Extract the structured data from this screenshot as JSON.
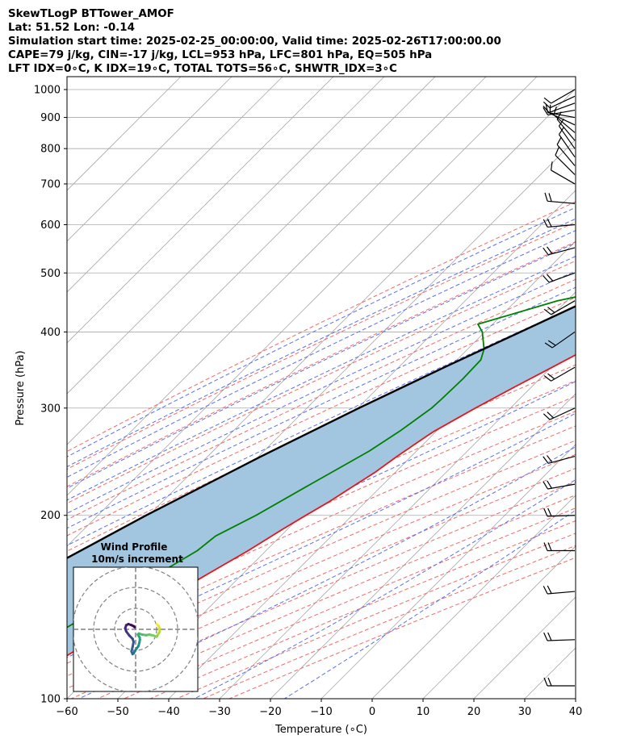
{
  "header": {
    "lines": [
      "SkewTLogP BTTower_AMOF",
      "Lat: 51.52   Lon: -0.14",
      "Simulation start time: 2025-02-25_00:00:00, Valid time: 2025-02-26T17:00:00.00",
      "CAPE=79 j/kg, CIN=-17 j/kg, LCL=953 hPa, LFC=801 hPa, EQ=505 hPa",
      "LFT IDX=0∘C, K IDX=19∘C, TOTAL TOTS=56∘C, SHWTR_IDX=3∘C"
    ]
  },
  "colors": {
    "temperature": "#e8141b",
    "dewpoint": "#008000",
    "parcel": "#000000",
    "cape_fill": "#a3c6e0",
    "dry_adiabat": "#f06a6a",
    "moist_adiabat": "#5a6ef0",
    "mixing_ratio": "#9b30c8",
    "isotherm": "#a9a9a9",
    "barb": "#000000"
  },
  "chart_data": {
    "type": "skewt_logp",
    "xlabel": "Temperature (∘C)",
    "ylabel": "Pressure (hPa)",
    "xlim": [
      -60,
      40
    ],
    "ylim": [
      1050,
      100
    ],
    "y_scale": "log",
    "x_ticks": [
      "−60",
      "−50",
      "−40",
      "−30",
      "−20",
      "−10",
      "0",
      "10",
      "20",
      "30",
      "40"
    ],
    "x_tick_values": [
      -60,
      -50,
      -40,
      -30,
      -20,
      -10,
      0,
      10,
      20,
      30,
      40
    ],
    "y_ticks": [
      "1000",
      "900",
      "800",
      "700",
      "600",
      "500",
      "400",
      "300",
      "200",
      "100"
    ],
    "y_tick_values": [
      1000,
      900,
      800,
      700,
      600,
      500,
      400,
      300,
      200,
      100
    ],
    "grid": true,
    "series": [
      {
        "key": "temperature",
        "points": [
          [
            1000,
            8.2
          ],
          [
            975,
            7.0
          ],
          [
            950,
            5.6
          ],
          [
            925,
            4.8
          ],
          [
            900,
            4.2
          ],
          [
            875,
            3.4
          ],
          [
            850,
            2.4
          ],
          [
            825,
            1.3
          ],
          [
            800,
            0.0
          ],
          [
            775,
            -1.0
          ],
          [
            750,
            -2.4
          ],
          [
            725,
            -3.6
          ],
          [
            700,
            -4.9
          ],
          [
            675,
            -6.0
          ],
          [
            650,
            -7.5
          ],
          [
            625,
            -8.8
          ],
          [
            600,
            -10.2
          ],
          [
            575,
            -11.5
          ],
          [
            550,
            -13.0
          ],
          [
            525,
            -14.2
          ],
          [
            500,
            -16.0
          ],
          [
            475,
            -17.3
          ],
          [
            450,
            -19.4
          ],
          [
            425,
            -21.7
          ],
          [
            400,
            -24.0
          ],
          [
            375,
            -26.6
          ],
          [
            350,
            -29.8
          ],
          [
            325,
            -33.3
          ],
          [
            300,
            -36.9
          ],
          [
            275,
            -40.4
          ],
          [
            270,
            -40.9
          ],
          [
            250,
            -42.8
          ],
          [
            235,
            -44.0
          ],
          [
            225,
            -45.3
          ],
          [
            210,
            -47.3
          ],
          [
            200,
            -49.1
          ],
          [
            190,
            -50.9
          ],
          [
            175,
            -53.5
          ],
          [
            160,
            -56.9
          ],
          [
            150,
            -59.3
          ],
          [
            140,
            -62.1
          ],
          [
            125,
            -66.3
          ],
          [
            112,
            -70.3
          ],
          [
            105,
            -72.6
          ],
          [
            100,
            -74.0
          ]
        ]
      },
      {
        "key": "dewpoint",
        "points": [
          [
            1000,
            5.0
          ],
          [
            975,
            5.2
          ],
          [
            950,
            5.0
          ],
          [
            925,
            3.6
          ],
          [
            900,
            0.5
          ],
          [
            875,
            -2.6
          ],
          [
            850,
            -5.0
          ],
          [
            825,
            -6.0
          ],
          [
            800,
            -6.6
          ],
          [
            775,
            -7.5
          ],
          [
            750,
            -8.0
          ],
          [
            725,
            -8.9
          ],
          [
            700,
            -9.8
          ],
          [
            675,
            -10.8
          ],
          [
            650,
            -12.0
          ],
          [
            625,
            -13.8
          ],
          [
            600,
            -15.4
          ],
          [
            575,
            -17.1
          ],
          [
            550,
            -18.4
          ],
          [
            525,
            -19.6
          ],
          [
            500,
            -21.0
          ],
          [
            490,
            -24.4
          ],
          [
            475,
            -31.5
          ],
          [
            450,
            -41.8
          ],
          [
            412,
            -52.9
          ],
          [
            400,
            -50.5
          ],
          [
            375,
            -46.8
          ],
          [
            360,
            -45.3
          ],
          [
            335,
            -45.1
          ],
          [
            310,
            -45.3
          ],
          [
            300,
            -45.5
          ],
          [
            275,
            -47.2
          ],
          [
            255,
            -49.3
          ],
          [
            240,
            -51.7
          ],
          [
            225,
            -54.3
          ],
          [
            200,
            -58.9
          ],
          [
            185,
            -62.8
          ],
          [
            175,
            -63.5
          ],
          [
            160,
            -66.7
          ],
          [
            145,
            -70.4
          ],
          [
            130,
            -74.3
          ],
          [
            120,
            -77.5
          ],
          [
            110,
            -81.0
          ],
          [
            100,
            -84.0
          ]
        ]
      },
      {
        "key": "parcel",
        "points": [
          [
            1000,
            8.2
          ],
          [
            975,
            6.8
          ],
          [
            953,
            5.4
          ],
          [
            925,
            3.9
          ],
          [
            900,
            2.6
          ],
          [
            850,
            -0.3
          ],
          [
            800,
            -3.6
          ],
          [
            750,
            -7.0
          ],
          [
            700,
            -10.7
          ],
          [
            650,
            -14.8
          ],
          [
            600,
            -19.2
          ],
          [
            550,
            -24.0
          ],
          [
            505,
            -29.2
          ],
          [
            500,
            -29.8
          ],
          [
            450,
            -36.0
          ],
          [
            400,
            -43.0
          ],
          [
            350,
            -51.0
          ],
          [
            300,
            -59.8
          ],
          [
            250,
            -69.5
          ],
          [
            200,
            -80.5
          ],
          [
            150,
            -93.3
          ],
          [
            100,
            -109.0
          ]
        ]
      }
    ],
    "cape_region": {
      "from_hPa": 100,
      "to_hPa": 505
    },
    "wind_barbs": [
      {
        "p": 1000,
        "speed_kt": 10,
        "dir_deg": 240
      },
      {
        "p": 975,
        "speed_kt": 10,
        "dir_deg": 245
      },
      {
        "p": 950,
        "speed_kt": 10,
        "dir_deg": 250
      },
      {
        "p": 925,
        "speed_kt": 10,
        "dir_deg": 260
      },
      {
        "p": 900,
        "speed_kt": 10,
        "dir_deg": 280
      },
      {
        "p": 875,
        "speed_kt": 10,
        "dir_deg": 295
      },
      {
        "p": 850,
        "speed_kt": 10,
        "dir_deg": 310
      },
      {
        "p": 825,
        "speed_kt": 10,
        "dir_deg": 320
      },
      {
        "p": 800,
        "speed_kt": 10,
        "dir_deg": 325
      },
      {
        "p": 775,
        "speed_kt": 10,
        "dir_deg": 325
      },
      {
        "p": 750,
        "speed_kt": 10,
        "dir_deg": 320
      },
      {
        "p": 725,
        "speed_kt": 10,
        "dir_deg": 315
      },
      {
        "p": 700,
        "speed_kt": 10,
        "dir_deg": 300
      },
      {
        "p": 650,
        "speed_kt": 20,
        "dir_deg": 275
      },
      {
        "p": 600,
        "speed_kt": 20,
        "dir_deg": 265
      },
      {
        "p": 550,
        "speed_kt": 20,
        "dir_deg": 255
      },
      {
        "p": 500,
        "speed_kt": 20,
        "dir_deg": 250
      },
      {
        "p": 450,
        "speed_kt": 20,
        "dir_deg": 240
      },
      {
        "p": 400,
        "speed_kt": 20,
        "dir_deg": 235
      },
      {
        "p": 350,
        "speed_kt": 20,
        "dir_deg": 240
      },
      {
        "p": 300,
        "speed_kt": 20,
        "dir_deg": 245
      },
      {
        "p": 250,
        "speed_kt": 20,
        "dir_deg": 255
      },
      {
        "p": 225,
        "speed_kt": 20,
        "dir_deg": 260
      },
      {
        "p": 200,
        "speed_kt": 20,
        "dir_deg": 268
      },
      {
        "p": 175,
        "speed_kt": 20,
        "dir_deg": 270
      },
      {
        "p": 150,
        "speed_kt": 20,
        "dir_deg": 265
      },
      {
        "p": 125,
        "speed_kt": 20,
        "dir_deg": 268
      },
      {
        "p": 105,
        "speed_kt": 20,
        "dir_deg": 270
      }
    ],
    "inset": {
      "title": "Wind Profile",
      "subtitle": "10m/s increment",
      "type": "hodograph",
      "rings_ms": [
        10,
        20,
        30
      ],
      "uv_points": [
        [
          -1.5,
          2.5
        ],
        [
          -0.5,
          1.5
        ],
        [
          -0.2,
          0.5
        ],
        [
          0.0,
          -0.5
        ],
        [
          -0.3,
          -1.5
        ],
        [
          -1.2,
          -3.0
        ],
        [
          -1.5,
          -3.5
        ],
        [
          -3.0,
          -3.0
        ],
        [
          -5.0,
          -2.5
        ],
        [
          -6.5,
          -2.8
        ],
        [
          -8.5,
          -2.5
        ],
        [
          -10.0,
          -2.0
        ],
        [
          -10.5,
          -2.5
        ],
        [
          -10.0,
          -3.3
        ],
        [
          -9.6,
          -3.8
        ],
        [
          -9.5,
          -5.0
        ],
        [
          -9.8,
          -6.5
        ],
        [
          -10.2,
          -8.0
        ],
        [
          -11.0,
          -9.0
        ],
        [
          -12.0,
          -10.5
        ],
        [
          -12.5,
          -11.5
        ],
        [
          -13.0,
          -11.8
        ],
        [
          -13.5,
          -10.5
        ],
        [
          -13.0,
          -8.5
        ],
        [
          -12.5,
          -6.0
        ],
        [
          -13.0,
          -4.5
        ],
        [
          -14.5,
          -3.0
        ],
        [
          -16.0,
          -1.0
        ],
        [
          -16.5,
          0.5
        ],
        [
          -16.0,
          2.0
        ],
        [
          -15.0,
          2.5
        ],
        [
          -13.5,
          2.0
        ],
        [
          -12.5,
          1.5
        ],
        [
          -12.0,
          1.0
        ]
      ]
    }
  }
}
